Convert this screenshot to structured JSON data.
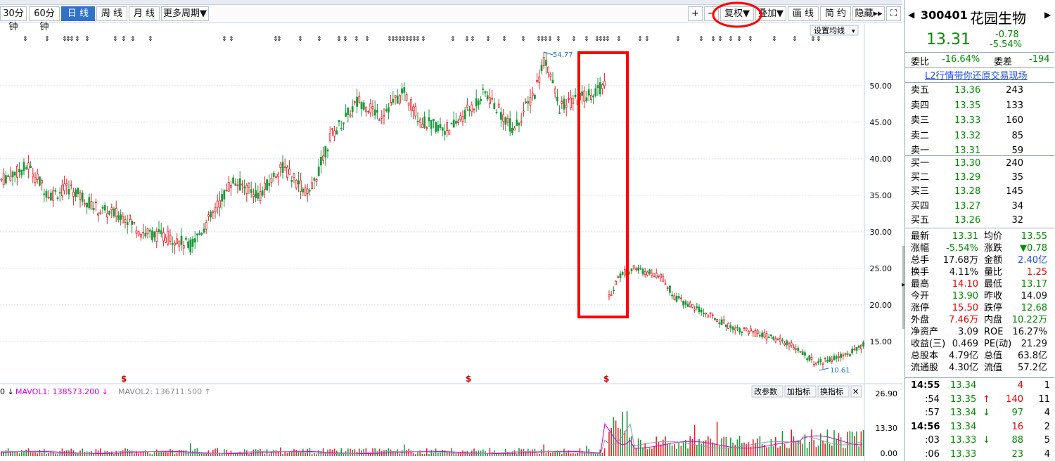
{
  "toolbar": {
    "period_buttons": [
      "30分钟",
      "60分钟",
      "日 线",
      "周 线",
      "月 线",
      "更多周期▼"
    ],
    "active_index": 2,
    "right_buttons": [
      "+",
      "−",
      "复权▼",
      "叠加▼",
      "画 线",
      "简 约",
      "隐藏▸▸",
      "⛶"
    ]
  },
  "chart": {
    "set_ma_label": "设置均线",
    "high_label": "54.77",
    "low_label": "10.61",
    "y_ticks": [
      "50.00",
      "45.00",
      "40.00",
      "35.00",
      "30.00",
      "25.00",
      "20.00",
      "15.00"
    ],
    "vol_ticks": [
      "26.90",
      "13.30",
      "0.00"
    ],
    "vol_legend": {
      "prefix": "0 ↓",
      "mavol1": "MAVOL1: 138573.200 ↓",
      "mavol2": "MAVOL2: 136711.500 ↑"
    },
    "vol_buttons": [
      "改参数",
      "加指标",
      "换指标",
      "✕"
    ],
    "event_marks": [
      "$",
      "$",
      "$"
    ],
    "colors": {
      "up": "#e0262a",
      "down": "#1a9a3a",
      "mavol1": "#d400d4",
      "mavol2": "#9a9aa6",
      "annot": "#ff0000"
    }
  },
  "panel": {
    "code": "300401",
    "name": "花园生物",
    "price": "13.31",
    "change": "-0.78",
    "change_pct": "-5.54%",
    "webi_label": "委比",
    "webi_value": "-16.64%",
    "weicha_label": "委差",
    "weicha_value": "-194",
    "promo": "L2行情带你还原交易现场",
    "asks": [
      {
        "label": "卖五",
        "price": "13.36",
        "vol": "243"
      },
      {
        "label": "卖四",
        "price": "13.35",
        "vol": "133"
      },
      {
        "label": "卖三",
        "price": "13.33",
        "vol": "160"
      },
      {
        "label": "卖二",
        "price": "13.32",
        "vol": "85"
      },
      {
        "label": "卖一",
        "price": "13.31",
        "vol": "59"
      }
    ],
    "bids": [
      {
        "label": "买一",
        "price": "13.30",
        "vol": "240"
      },
      {
        "label": "买二",
        "price": "13.29",
        "vol": "35"
      },
      {
        "label": "买三",
        "price": "13.28",
        "vol": "145"
      },
      {
        "label": "买四",
        "price": "13.27",
        "vol": "34"
      },
      {
        "label": "买五",
        "price": "13.26",
        "vol": "32"
      }
    ],
    "stats": [
      {
        "l1": "最新",
        "v1": "13.31",
        "c1": "green",
        "l2": "均价",
        "v2": "13.55",
        "c2": "green"
      },
      {
        "l1": "涨幅",
        "v1": "-5.54%",
        "c1": "green",
        "l2": "涨跌",
        "v2": "▼0.78",
        "c2": "green"
      },
      {
        "l1": "总手",
        "v1": "17.68万",
        "c1": "black",
        "l2": "金额",
        "v2": "2.40亿",
        "c2": "blue"
      },
      {
        "l1": "换手",
        "v1": "4.11%",
        "c1": "black",
        "l2": "量比",
        "v2": "1.25",
        "c2": "red"
      },
      {
        "l1": "最高",
        "v1": "14.10",
        "c1": "red",
        "l2": "最低",
        "v2": "13.17",
        "c2": "green"
      },
      {
        "l1": "今开",
        "v1": "13.90",
        "c1": "green",
        "l2": "昨收",
        "v2": "14.09",
        "c2": "black"
      },
      {
        "l1": "涨停",
        "v1": "15.50",
        "c1": "red",
        "l2": "跌停",
        "v2": "12.68",
        "c2": "green"
      },
      {
        "l1": "外盘",
        "v1": "7.46万",
        "c1": "red",
        "l2": "内盘",
        "v2": "10.22万",
        "c2": "green"
      },
      {
        "l1": "净资产",
        "v1": "3.09",
        "c1": "black",
        "l2": "ROE",
        "v2": "16.27%",
        "c2": "black"
      },
      {
        "l1": "收益(三)",
        "v1": "0.469",
        "c1": "black",
        "l2": "PE(动)",
        "v2": "21.29",
        "c2": "black"
      },
      {
        "l1": "总股本",
        "v1": "4.79亿",
        "c1": "black",
        "l2": "总值",
        "v2": "63.8亿",
        "c2": "black"
      },
      {
        "l1": "流通股",
        "v1": "4.30亿",
        "c1": "black",
        "l2": "流值",
        "v2": "57.2亿",
        "c2": "black"
      }
    ],
    "ticks": [
      {
        "time": "14:55",
        "price": "13.34",
        "arrow": "",
        "vol": "4",
        "num": "1",
        "vc": "red"
      },
      {
        "time": ":54",
        "price": "13.35",
        "arrow": "↑",
        "vol": "140",
        "num": "11",
        "vc": "red"
      },
      {
        "time": ":57",
        "price": "13.34",
        "arrow": "↓",
        "vol": "97",
        "num": "4",
        "vc": "green"
      },
      {
        "time": "14:56",
        "price": "13.34",
        "arrow": "",
        "vol": "16",
        "num": "2",
        "vc": "red"
      },
      {
        "time": ":03",
        "price": "13.33",
        "arrow": "↓",
        "vol": "88",
        "num": "5",
        "vc": "green"
      },
      {
        "time": ":06",
        "price": "13.33",
        "arrow": "",
        "vol": "23",
        "num": "4",
        "vc": "green"
      }
    ]
  }
}
